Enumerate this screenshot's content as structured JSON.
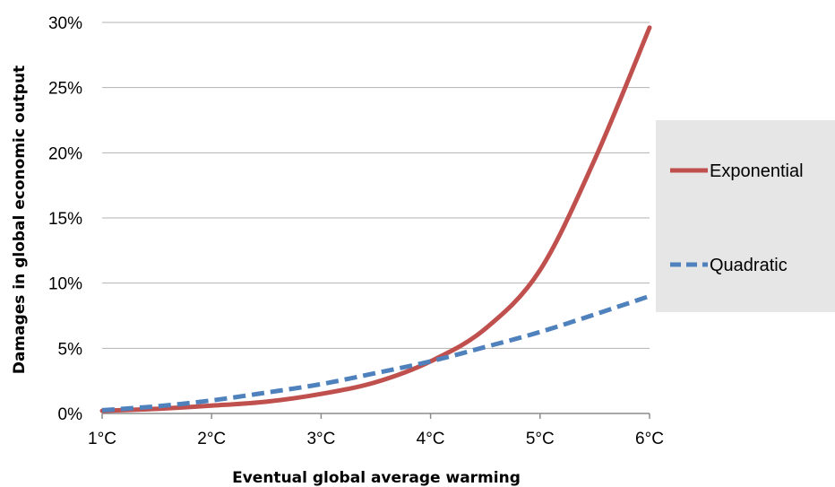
{
  "chart_data": {
    "type": "line",
    "title": "",
    "xlabel": "Eventual global average warming",
    "ylabel": "Damages in global economic output",
    "x": [
      1,
      1.5,
      2,
      2.5,
      3,
      3.5,
      4,
      4.5,
      5,
      5.5,
      6
    ],
    "x_tick_labels": [
      "1°C",
      "2°C",
      "3°C",
      "4°C",
      "5°C",
      "6°C"
    ],
    "x_tick_values": [
      1,
      2,
      3,
      4,
      5,
      6
    ],
    "y_tick_labels": [
      "0%",
      "5%",
      "10%",
      "15%",
      "20%",
      "25%",
      "30%"
    ],
    "y_tick_values": [
      0,
      5,
      10,
      15,
      20,
      25,
      30
    ],
    "xlim": [
      1,
      6
    ],
    "ylim": [
      0,
      30
    ],
    "grid": "horizontal",
    "legend_position": "right",
    "series": [
      {
        "name": "Exponential",
        "color": "#c0504d",
        "style": "solid",
        "values": [
          0.2,
          0.35,
          0.6,
          0.9,
          1.5,
          2.4,
          4.0,
          6.5,
          11.0,
          19.5,
          29.6
        ]
      },
      {
        "name": "Quadratic",
        "color": "#4f81bd",
        "style": "dashed",
        "values": [
          0.25,
          0.55,
          1.0,
          1.6,
          2.25,
          3.1,
          4.0,
          5.1,
          6.25,
          7.6,
          9.0
        ]
      }
    ]
  }
}
